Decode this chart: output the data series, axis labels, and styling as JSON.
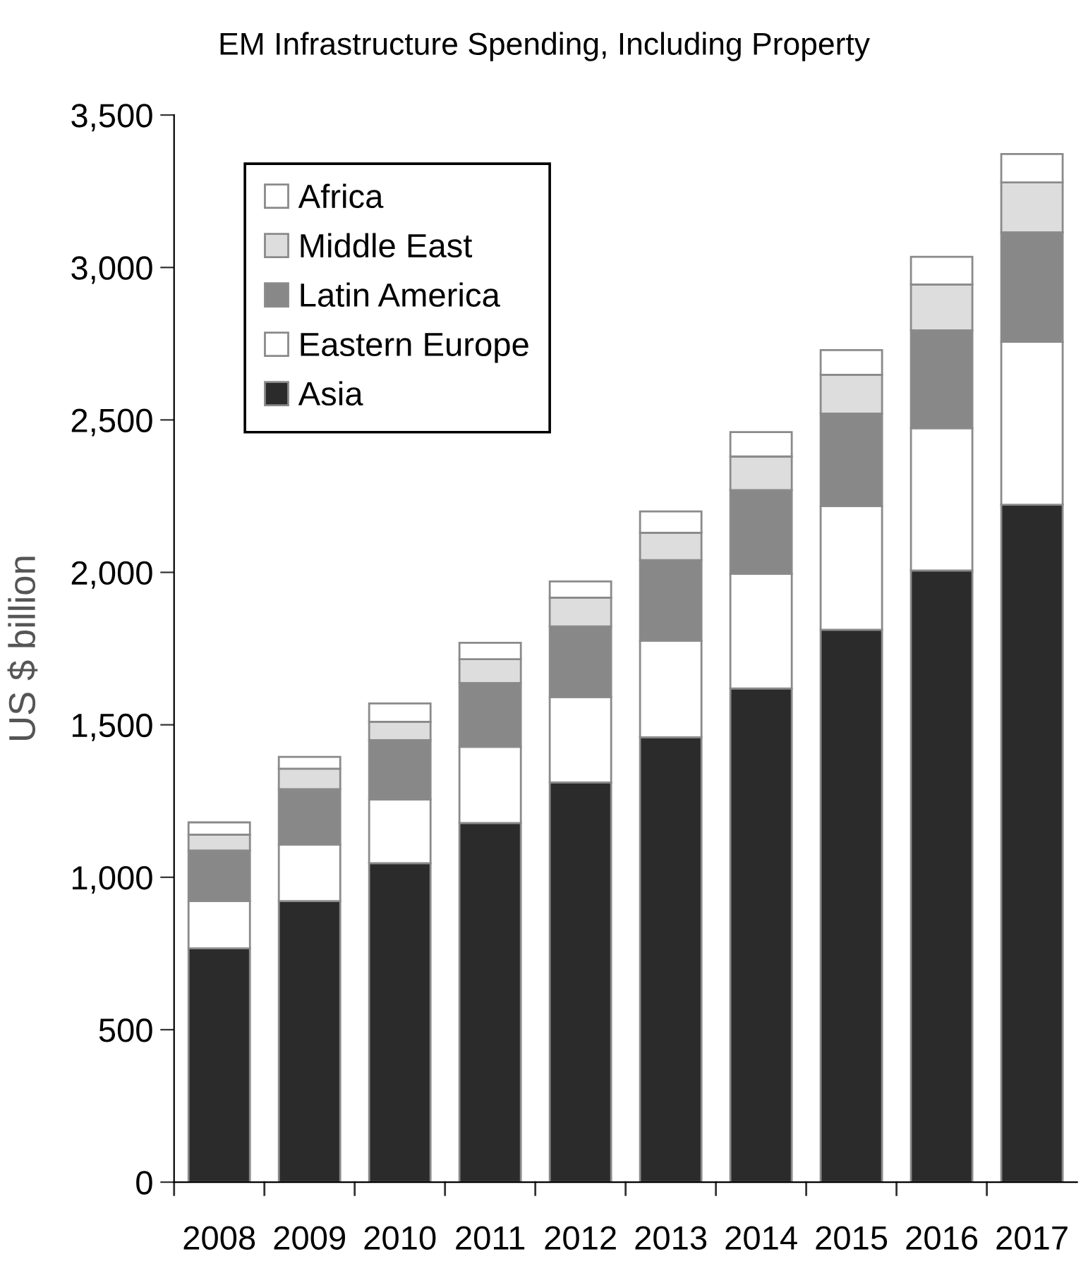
{
  "chart_data": {
    "type": "bar",
    "stacked": true,
    "title": "EM Infrastructure Spending, Including Property",
    "ylabel": "US $ billion",
    "categories": [
      "2008",
      "2009",
      "2010",
      "2011",
      "2012",
      "2013",
      "2014",
      "2015",
      "2016",
      "2017"
    ],
    "series": [
      {
        "name": "Asia",
        "color": "#2b2b2b",
        "values": [
          767,
          922,
          1046,
          1178,
          1311,
          1459,
          1619,
          1812,
          2006,
          2222
        ]
      },
      {
        "name": "Eastern Europe",
        "color": "#ffffff",
        "values": [
          155,
          185,
          209,
          250,
          280,
          317,
          376,
          405,
          467,
          534
        ]
      },
      {
        "name": "Latin America",
        "color": "#888888",
        "values": [
          166,
          182,
          195,
          209,
          232,
          264,
          275,
          304,
          321,
          359
        ]
      },
      {
        "name": "Middle East",
        "color": "#dddddd",
        "values": [
          52,
          67,
          60,
          78,
          94,
          90,
          110,
          127,
          150,
          164
        ]
      },
      {
        "name": "Africa",
        "color": "#ffffff",
        "values": [
          40,
          39,
          60,
          54,
          53,
          70,
          80,
          81,
          91,
          93
        ]
      }
    ],
    "ylim": [
      0,
      3500
    ],
    "yticks": [
      0,
      500,
      {
        "value": 1000,
        "label": "1,000"
      },
      {
        "value": 1500,
        "label": "1,500"
      },
      {
        "value": 2000,
        "label": "2,000"
      },
      {
        "value": 2500,
        "label": "2,500"
      },
      {
        "value": 3000,
        "label": "3,000"
      },
      {
        "value": 3500,
        "label": "3,500"
      }
    ],
    "legend": "top left"
  }
}
